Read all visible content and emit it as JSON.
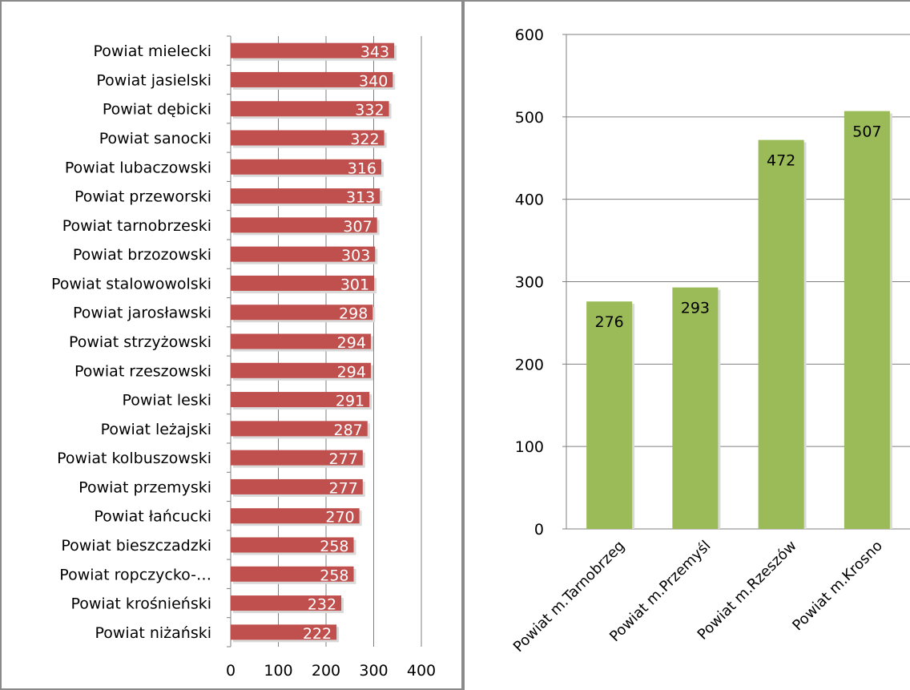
{
  "chart_data": [
    {
      "type": "bar",
      "orientation": "horizontal",
      "title": "",
      "xlabel": "",
      "ylabel": "",
      "categories": [
        "Powiat mielecki",
        "Powiat jasielski",
        "Powiat dębicki",
        "Powiat sanocki",
        "Powiat lubaczowski",
        "Powiat przeworski",
        "Powiat tarnobrzeski",
        "Powiat brzozowski",
        "Powiat stalowowolski",
        "Powiat jarosławski",
        "Powiat strzyżowski",
        "Powiat rzeszowski",
        "Powiat leski",
        "Powiat leżajski",
        "Powiat kolbuszowski",
        "Powiat przemyski",
        "Powiat łańcucki",
        "Powiat bieszczadzki",
        "Powiat ropczycko-…",
        "Powiat krośnieński",
        "Powiat niżański"
      ],
      "values": [
        343,
        340,
        332,
        322,
        316,
        313,
        307,
        303,
        301,
        298,
        294,
        294,
        291,
        287,
        277,
        277,
        270,
        258,
        258,
        232,
        222
      ],
      "xlim": [
        0,
        400
      ],
      "ticks": [
        "0",
        "100",
        "200",
        "300",
        "400"
      ],
      "grid": "vertical",
      "bar_color": "#c0504d",
      "label_color": "#ffffff"
    },
    {
      "type": "bar",
      "orientation": "vertical",
      "title": "",
      "xlabel": "",
      "ylabel": "",
      "categories": [
        "Powiat m.Tarnobrzeg",
        "Powiat m.Przemyśl",
        "Powiat m.Rzeszów",
        "Powiat m.Krosno"
      ],
      "values": [
        276,
        293,
        472,
        507
      ],
      "ylim": [
        0,
        600
      ],
      "ticks": [
        "0",
        "100",
        "200",
        "300",
        "400",
        "500",
        "600"
      ],
      "grid": "horizontal",
      "bar_color": "#9bbb59",
      "label_color": "#000000"
    }
  ]
}
